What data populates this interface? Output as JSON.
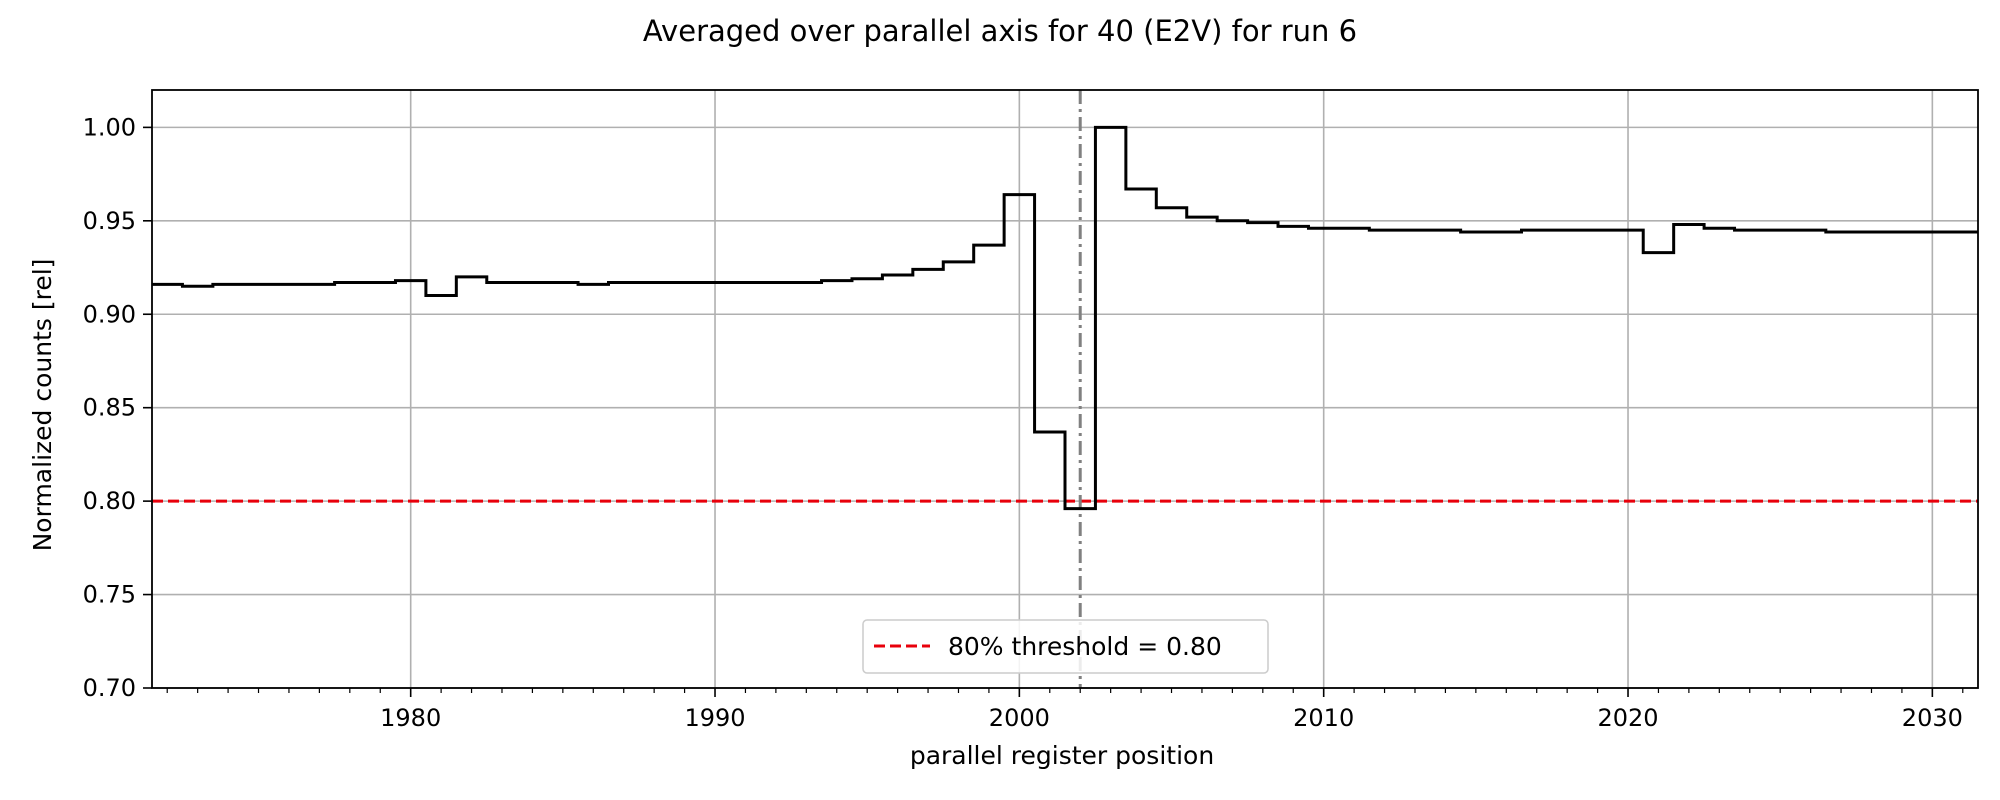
{
  "chart_data": {
    "type": "line",
    "title": "Averaged over parallel axis for 40 (E2V) for run 6",
    "xlabel": "parallel register position",
    "ylabel": "Normalized counts [rel]",
    "xlim": [
      1971.5,
      2031.5
    ],
    "ylim": [
      0.7,
      1.02
    ],
    "x_ticks": [
      1980,
      1990,
      2000,
      2010,
      2020,
      2030
    ],
    "x_tick_labels": [
      "1980",
      "1990",
      "2000",
      "2010",
      "2020",
      "2030"
    ],
    "x_minor_step": 1,
    "y_ticks": [
      0.7,
      0.75,
      0.8,
      0.85,
      0.9,
      0.95,
      1.0
    ],
    "y_tick_labels": [
      "0.70",
      "0.75",
      "0.80",
      "0.85",
      "0.90",
      "0.95",
      "1.00"
    ],
    "grid": true,
    "legend_position": "bottom-center",
    "step_style": "mid",
    "series": [
      {
        "color": "#000000",
        "x": [
          1971,
          1972,
          1973,
          1974,
          1975,
          1976,
          1977,
          1978,
          1979,
          1980,
          1981,
          1982,
          1983,
          1984,
          1985,
          1986,
          1987,
          1988,
          1989,
          1990,
          1991,
          1992,
          1993,
          1994,
          1995,
          1996,
          1997,
          1998,
          1999,
          2000,
          2001,
          2002,
          2003,
          2004,
          2005,
          2006,
          2007,
          2008,
          2009,
          2010,
          2011,
          2012,
          2013,
          2014,
          2015,
          2016,
          2017,
          2018,
          2019,
          2020,
          2021,
          2022,
          2023,
          2024,
          2025,
          2026,
          2027,
          2028,
          2029,
          2030,
          2031,
          2032
        ],
        "values": [
          0.916,
          0.916,
          0.915,
          0.916,
          0.916,
          0.916,
          0.916,
          0.917,
          0.917,
          0.918,
          0.91,
          0.92,
          0.917,
          0.917,
          0.917,
          0.916,
          0.917,
          0.917,
          0.917,
          0.917,
          0.917,
          0.917,
          0.917,
          0.918,
          0.919,
          0.921,
          0.924,
          0.928,
          0.937,
          0.964,
          0.837,
          0.796,
          1.0,
          0.967,
          0.957,
          0.952,
          0.95,
          0.949,
          0.947,
          0.946,
          0.946,
          0.945,
          0.945,
          0.945,
          0.944,
          0.944,
          0.945,
          0.945,
          0.945,
          0.945,
          0.933,
          0.948,
          0.946,
          0.945,
          0.945,
          0.945,
          0.944,
          0.944,
          0.944,
          0.944,
          0.944,
          0.944
        ]
      }
    ],
    "threshold": {
      "label": "80% threshold = 0.80",
      "value": 0.8,
      "color": "#e8000b",
      "style": "dashed"
    },
    "vertical_marker": {
      "x": 2002,
      "color": "#808080",
      "style": "dash-dot"
    }
  }
}
